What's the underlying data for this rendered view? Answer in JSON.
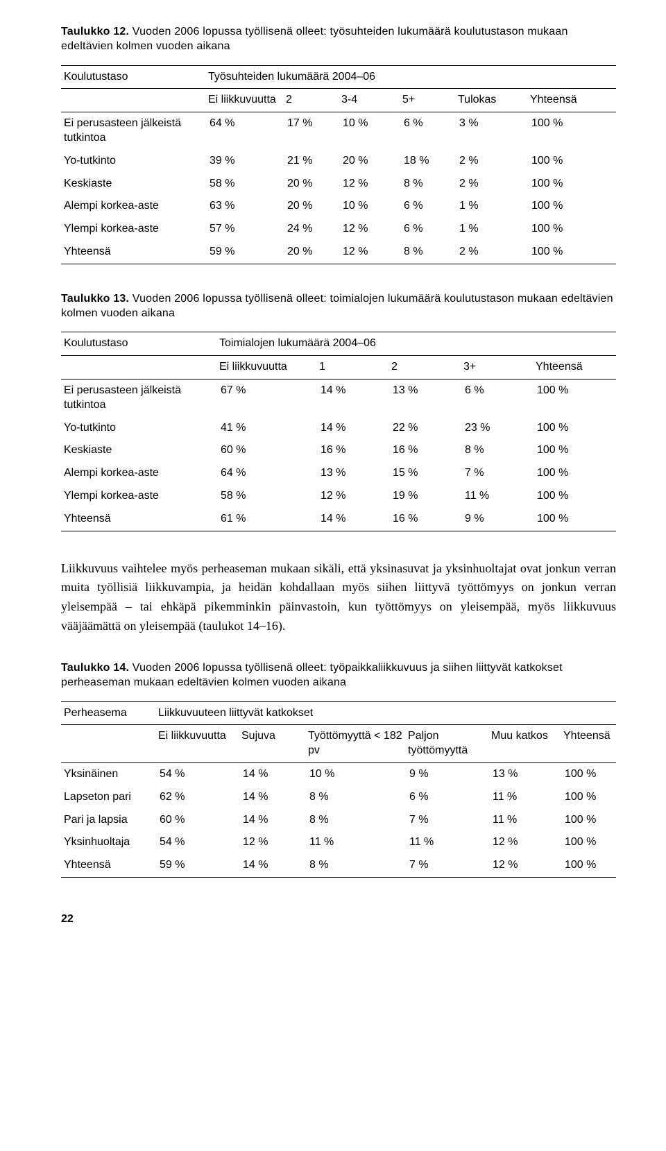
{
  "table12": {
    "caption_lead": "Taulukko 12.",
    "caption_rest": " Vuoden 2006 lopussa työllisenä olleet: työsuhteiden lukumäärä koulutustason mukaan edeltävien kolmen vuoden aikana",
    "rowHeaderLabel": "Koulutustaso",
    "spanHeader": "Työsuhteiden lukumäärä 2004–06",
    "subHeaders": [
      "Ei liikkuvuutta",
      "2",
      "3-4",
      "5+",
      "Tulokas",
      "Yhteensä"
    ],
    "rows": [
      {
        "label": "Ei perusasteen jälkeistä tutkintoa",
        "vals": [
          "64 %",
          "17 %",
          "10 %",
          "6 %",
          "3 %",
          "100 %"
        ]
      },
      {
        "label": "Yo-tutkinto",
        "vals": [
          "39 %",
          "21 %",
          "20 %",
          "18 %",
          "2 %",
          "100 %"
        ]
      },
      {
        "label": "Keskiaste",
        "vals": [
          "58 %",
          "20 %",
          "12 %",
          "8 %",
          "2 %",
          "100 %"
        ]
      },
      {
        "label": "Alempi korkea-aste",
        "vals": [
          "63 %",
          "20 %",
          "10 %",
          "6 %",
          "1 %",
          "100 %"
        ]
      },
      {
        "label": "Ylempi korkea-aste",
        "vals": [
          "57 %",
          "24 %",
          "12 %",
          "6 %",
          "1 %",
          "100 %"
        ]
      },
      {
        "label": "Yhteensä",
        "vals": [
          "59 %",
          "20 %",
          "12 %",
          "8 %",
          "2 %",
          "100 %"
        ]
      }
    ]
  },
  "table13": {
    "caption_lead": "Taulukko 13.",
    "caption_rest": " Vuoden 2006 lopussa työllisenä olleet: toimialojen lukumäärä koulutustason mukaan edeltävien kolmen vuoden aikana",
    "rowHeaderLabel": "Koulutustaso",
    "spanHeader": "Toimialojen lukumäärä 2004–06",
    "subHeaders": [
      "Ei liikkuvuutta",
      "1",
      "2",
      "3+",
      "Yhteensä"
    ],
    "rows": [
      {
        "label": "Ei perusasteen jälkeistä tutkintoa",
        "vals": [
          "67 %",
          "14 %",
          "13 %",
          "6 %",
          "100 %"
        ]
      },
      {
        "label": "Yo-tutkinto",
        "vals": [
          "41 %",
          "14 %",
          "22 %",
          "23 %",
          "100 %"
        ]
      },
      {
        "label": "Keskiaste",
        "vals": [
          "60 %",
          "16 %",
          "16 %",
          "8 %",
          "100 %"
        ]
      },
      {
        "label": "Alempi korkea-aste",
        "vals": [
          "64 %",
          "13 %",
          "15 %",
          "7 %",
          "100 %"
        ]
      },
      {
        "label": "Ylempi korkea-aste",
        "vals": [
          "58 %",
          "12 %",
          "19 %",
          "11 %",
          "100 %"
        ]
      },
      {
        "label": "Yhteensä",
        "vals": [
          "61 %",
          "14 %",
          "16 %",
          "9 %",
          "100 %"
        ]
      }
    ]
  },
  "paragraph": "Liikkuvuus vaihtelee myös perheaseman mukaan sikäli, että yksinasuvat ja yksinhuoltajat ovat jonkun verran muita työllisiä liikkuvampia, ja heidän kohdallaan myös siihen liittyvä työttömyys on jonkun verran yleisempää – tai ehkäpä pikemminkin päinvastoin, kun työttömyys on yleisempää, myös liikkuvuus vääjäämättä on yleisempää (taulukot 14–16).",
  "table14": {
    "caption_lead": "Taulukko 14.",
    "caption_rest": " Vuoden 2006 lopussa työllisenä olleet: työpaikkaliikkuvuus ja siihen liittyvät katkokset perheaseman mukaan edeltävien kolmen vuoden aikana",
    "rowHeaderLabel": "Perheasema",
    "spanHeader": "Liikkuvuuteen liittyvät katkokset",
    "subHeaders": [
      "Ei liikkuvuutta",
      "Sujuva",
      "Työttömyyttä < 182 pv",
      "Paljon työttömyyttä",
      "Muu katkos",
      "Yhteensä"
    ],
    "rows": [
      {
        "label": "Yksinäinen",
        "vals": [
          "54 %",
          "14 %",
          "10 %",
          "9 %",
          "13 %",
          "100 %"
        ]
      },
      {
        "label": "Lapseton pari",
        "vals": [
          "62 %",
          "14 %",
          "8 %",
          "6 %",
          "11 %",
          "100 %"
        ]
      },
      {
        "label": "Pari ja lapsia",
        "vals": [
          "60 %",
          "14 %",
          "8 %",
          "7 %",
          "11 %",
          "100 %"
        ]
      },
      {
        "label": "Yksinhuoltaja",
        "vals": [
          "54 %",
          "12 %",
          "11 %",
          "11 %",
          "12 %",
          "100 %"
        ]
      },
      {
        "label": "Yhteensä",
        "vals": [
          "59 %",
          "14 %",
          "8 %",
          "7 %",
          "12 %",
          "100 %"
        ]
      }
    ]
  },
  "pageNumber": "22",
  "layout": {
    "colWidths12": [
      "26%",
      "14%",
      "10%",
      "11%",
      "10%",
      "13%",
      "16%"
    ],
    "colWidths13": [
      "28%",
      "18%",
      "13%",
      "13%",
      "13%",
      "15%"
    ],
    "colWidths14": [
      "17%",
      "15%",
      "12%",
      "18%",
      "15%",
      "13%",
      "10%"
    ]
  }
}
